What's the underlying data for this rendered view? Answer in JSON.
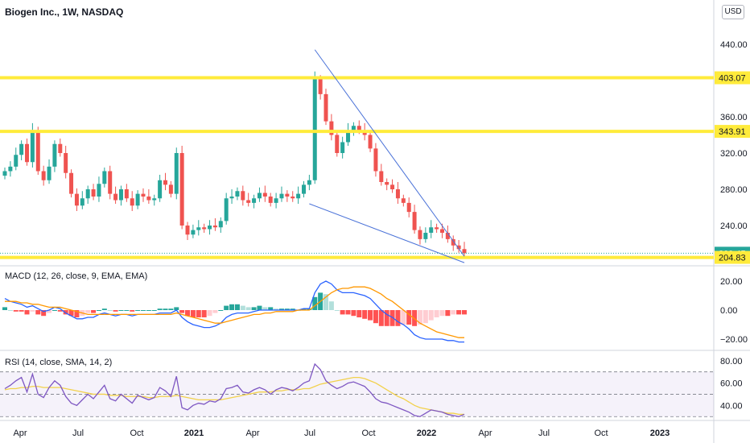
{
  "header": {
    "symbol_title": "Biogen Inc., 1W, NASDAQ",
    "currency": "USD"
  },
  "macd_label": "MACD (12, 26, close, 9, EMA, EMA)",
  "rsi_label": "RSI (14, close, SMA, 14, 2)",
  "colors": {
    "up": "#26a69a",
    "down": "#ef5350",
    "level": "#ffeb3b",
    "trend": "#4a72d8",
    "macd": "#2962ff",
    "signal": "#ff9800",
    "rsi": "#7e57c2",
    "rsi_ma": "#f2d14b",
    "price_tag": "#26a69a",
    "level_tag": "#ffeb3b"
  },
  "chart_data": [
    {
      "type": "candlestick",
      "title": "Biogen Inc., 1W, NASDAQ",
      "y_ticks": [
        240,
        280,
        320,
        360,
        440
      ],
      "ylim": [
        200,
        480
      ],
      "x_ticks": [
        "Apr",
        "Jul",
        "Oct",
        "2021",
        "Apr",
        "Jul",
        "Oct",
        "2022",
        "Apr",
        "Jul",
        "Oct",
        "2023"
      ],
      "horizontal_levels": [
        403.07,
        343.91,
        204.83
      ],
      "last_price": 209.45,
      "price_tags": [
        "403.07",
        "343.91",
        "209.45",
        "204.83"
      ],
      "trendlines": "falling wedge from Jun 2021 highs/lows converging near Feb 2022",
      "approx_closes": [
        300,
        305,
        318,
        330,
        310,
        345,
        300,
        290,
        305,
        330,
        320,
        298,
        275,
        262,
        270,
        280,
        272,
        286,
        300,
        275,
        268,
        280,
        270,
        262,
        275,
        272,
        268,
        270,
        290,
        285,
        275,
        320,
        240,
        230,
        235,
        238,
        236,
        240,
        238,
        245,
        270,
        272,
        278,
        268,
        265,
        270,
        276,
        272,
        265,
        270,
        275,
        272,
        270,
        275,
        285,
        290,
        402,
        385,
        355,
        340,
        320,
        332,
        345,
        350,
        345,
        340,
        325,
        300,
        288,
        285,
        280,
        270,
        265,
        255,
        235,
        225,
        232,
        238,
        236,
        232,
        225,
        218,
        214,
        209.45
      ]
    },
    {
      "type": "line",
      "title": "MACD (12, 26, close, 9, EMA, EMA)",
      "y_ticks": [
        20.0,
        0.0,
        -20.0
      ],
      "y_tick_labels": [
        "20.00",
        "0.00",
        "−20.00"
      ],
      "ylim": [
        -25,
        25
      ],
      "series": [
        {
          "name": "MACD",
          "values": [
            8,
            6,
            5,
            4,
            2,
            3,
            1,
            -1,
            0,
            2,
            1,
            -2,
            -4,
            -6,
            -6,
            -5,
            -5,
            -3,
            -2,
            -3,
            -4,
            -3,
            -3,
            -4,
            -3,
            -3,
            -3,
            -3,
            -2,
            -2,
            -2,
            0,
            -5,
            -8,
            -10,
            -11,
            -12,
            -12,
            -11,
            -9,
            -5,
            -3,
            -2,
            -2,
            -2,
            -1,
            0,
            0,
            0,
            0,
            0,
            0,
            0,
            0,
            1,
            1,
            12,
            18,
            20,
            18,
            14,
            12,
            12,
            12,
            11,
            10,
            8,
            4,
            0,
            -3,
            -5,
            -8,
            -10,
            -13,
            -17,
            -19,
            -20,
            -20,
            -20,
            -20,
            -21,
            -21,
            -22,
            -22
          ]
        },
        {
          "name": "Signal",
          "values": [
            6,
            6,
            6,
            5,
            5,
            4,
            4,
            3,
            2,
            2,
            2,
            1,
            0,
            -1,
            -2,
            -3,
            -3,
            -3,
            -3,
            -3,
            -3,
            -3,
            -3,
            -3,
            -3,
            -3,
            -3,
            -3,
            -3,
            -3,
            -3,
            -2,
            -3,
            -4,
            -5,
            -6,
            -7,
            -8,
            -9,
            -9,
            -8,
            -7,
            -6,
            -5,
            -4,
            -3,
            -3,
            -2,
            -2,
            -1,
            -1,
            -1,
            -1,
            0,
            0,
            0,
            3,
            6,
            9,
            12,
            14,
            15,
            15,
            16,
            16,
            16,
            15,
            13,
            11,
            8,
            6,
            3,
            0,
            -3,
            -6,
            -9,
            -11,
            -13,
            -15,
            -16,
            -17,
            -18,
            -19,
            -19
          ]
        }
      ]
    },
    {
      "type": "line",
      "title": "RSI (14, close, SMA, 14, 2)",
      "y_ticks": [
        80,
        60,
        40
      ],
      "y_tick_labels": [
        "80.00",
        "60.00",
        "40.00"
      ],
      "ylim": [
        28,
        82
      ],
      "band": [
        30,
        70
      ],
      "series": [
        {
          "name": "RSI",
          "values": [
            55,
            58,
            62,
            65,
            52,
            68,
            50,
            47,
            56,
            62,
            58,
            48,
            42,
            40,
            45,
            50,
            46,
            52,
            58,
            46,
            44,
            50,
            46,
            42,
            49,
            47,
            45,
            47,
            56,
            53,
            48,
            66,
            38,
            36,
            40,
            42,
            41,
            44,
            43,
            46,
            55,
            56,
            58,
            52,
            51,
            54,
            56,
            54,
            50,
            54,
            56,
            55,
            53,
            56,
            60,
            62,
            77,
            72,
            62,
            58,
            55,
            57,
            60,
            61,
            59,
            57,
            52,
            46,
            43,
            42,
            40,
            38,
            36,
            34,
            31,
            30,
            33,
            36,
            35,
            34,
            32,
            31,
            30,
            32
          ]
        },
        {
          "name": "RSI MA",
          "values": [
            54,
            55,
            55,
            56,
            56,
            57,
            57,
            56,
            56,
            56,
            56,
            55,
            54,
            53,
            52,
            51,
            50,
            50,
            50,
            49,
            49,
            49,
            48,
            48,
            48,
            48,
            47,
            47,
            48,
            48,
            48,
            49,
            48,
            47,
            46,
            45,
            45,
            45,
            45,
            45,
            46,
            47,
            48,
            49,
            50,
            51,
            52,
            52,
            52,
            53,
            53,
            54,
            54,
            54,
            55,
            55,
            57,
            59,
            60,
            61,
            62,
            63,
            64,
            65,
            65,
            64,
            62,
            60,
            57,
            54,
            51,
            48,
            46,
            43,
            40,
            38,
            37,
            36,
            35,
            34,
            33,
            33,
            32,
            32
          ]
        }
      ]
    }
  ]
}
